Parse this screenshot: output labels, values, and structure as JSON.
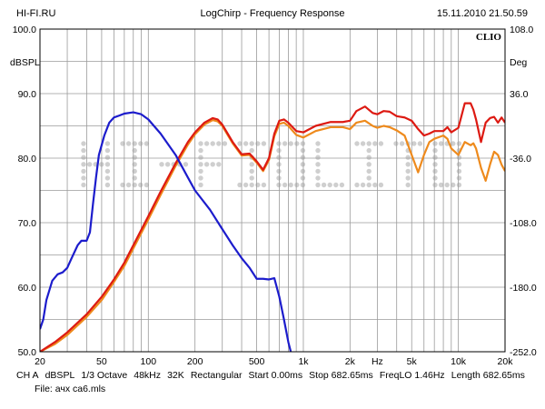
{
  "header": {
    "left": "HI-FI.RU",
    "center": "LogChirp - Frequency Response",
    "right": "15.11.2010 21.50.59"
  },
  "brand_label": "CLIO",
  "left_unit": "dBSPL",
  "right_unit": "Deg",
  "watermark_text": "HI-FI",
  "footer": {
    "items": [
      "CH A",
      "dBSPL",
      "1/3 Octave",
      "48kHz",
      "32K",
      "Rectangular",
      "Start 0.00ms",
      "Stop 682.65ms",
      "FreqLO 1.46Hz",
      "Length 682.65ms"
    ],
    "file": "File: ачх са6.mls"
  },
  "colors": {
    "blue": "#1c1ccc",
    "red": "#dd1a12",
    "orange": "#ee8a1c",
    "grid": "#9a9a9a",
    "frame": "#000000"
  },
  "chart_data": {
    "type": "line",
    "x_scale": "log",
    "xlim": [
      20,
      20000
    ],
    "ylim": [
      50,
      100
    ],
    "y2lim": [
      -252,
      108
    ],
    "xticks": [
      {
        "v": 20,
        "label": "20"
      },
      {
        "v": 50,
        "label": "50"
      },
      {
        "v": 100,
        "label": "100"
      },
      {
        "v": 200,
        "label": "200"
      },
      {
        "v": 500,
        "label": "500"
      },
      {
        "v": 1000,
        "label": "1k"
      },
      {
        "v": 2000,
        "label": "2k"
      },
      {
        "v": 3000,
        "label": "Hz"
      },
      {
        "v": 5000,
        "label": "5k"
      },
      {
        "v": 10000,
        "label": "10k"
      },
      {
        "v": 20000,
        "label": "20k"
      }
    ],
    "yticks": [
      {
        "v": 100,
        "label": "100.0"
      },
      {
        "v": 90,
        "label": "90.0"
      },
      {
        "v": 80,
        "label": "80.0"
      },
      {
        "v": 70,
        "label": "70.0"
      },
      {
        "v": 60,
        "label": "60.0"
      },
      {
        "v": 50,
        "label": "50.0"
      }
    ],
    "y2ticks": [
      {
        "v": 108,
        "label": "108.0"
      },
      {
        "v": 36,
        "label": "36.0"
      },
      {
        "v": -36,
        "label": "-36.0"
      },
      {
        "v": -108,
        "label": "-108.0"
      },
      {
        "v": -180,
        "label": "-180.0"
      },
      {
        "v": -252,
        "label": "-252.0"
      }
    ],
    "grid": true,
    "series": [
      {
        "color": "#1c1ccc",
        "x": [
          20,
          21,
          22,
          24,
          26,
          28,
          30,
          32,
          35,
          37,
          40,
          42,
          44,
          46,
          48,
          52,
          56,
          60,
          65,
          70,
          80,
          90,
          100,
          120,
          150,
          180,
          200,
          250,
          300,
          350,
          400,
          450,
          500,
          550,
          600,
          650,
          700,
          750,
          800,
          830
        ],
        "y": [
          53.5,
          55,
          58,
          61,
          62,
          62.3,
          63,
          64.5,
          66.5,
          67.2,
          67.2,
          68.5,
          73,
          77,
          80.5,
          83.5,
          85.5,
          86.3,
          86.6,
          86.9,
          87.1,
          86.8,
          86,
          83.8,
          80.5,
          77,
          75,
          72,
          69,
          66.5,
          64.5,
          63,
          61.3,
          61.3,
          61.2,
          61.4,
          58.5,
          55,
          51.5,
          50
        ]
      },
      {
        "color": "#dd1a12",
        "x": [
          20,
          25,
          30,
          40,
          50,
          60,
          70,
          80,
          100,
          120,
          150,
          180,
          200,
          230,
          260,
          280,
          300,
          350,
          400,
          450,
          500,
          550,
          600,
          650,
          700,
          750,
          800,
          900,
          1000,
          1200,
          1500,
          1800,
          2000,
          2200,
          2500,
          2800,
          3000,
          3300,
          3600,
          4000,
          4500,
          5000,
          5500,
          6000,
          6500,
          7000,
          8000,
          8500,
          9000,
          10000,
          11000,
          12000,
          12500,
          13000,
          14000,
          15000,
          16000,
          17000,
          18000,
          19000,
          20000
        ],
        "y": [
          50,
          51.5,
          53,
          55.8,
          58.5,
          61.2,
          63.8,
          66.5,
          71,
          74.8,
          79.2,
          82.5,
          84,
          85.5,
          86.2,
          86,
          85.2,
          82.5,
          80.6,
          80.7,
          79.5,
          78.2,
          80,
          83.8,
          85.8,
          86,
          85.5,
          84.2,
          84,
          85,
          85.6,
          85.6,
          85.8,
          87.3,
          88,
          87,
          86.8,
          87.3,
          87.2,
          86.5,
          86.3,
          85.8,
          84.5,
          83.5,
          83.8,
          84.2,
          84.2,
          84.8,
          84,
          84.7,
          88.5,
          88.5,
          87.5,
          86,
          82.5,
          85.5,
          86.2,
          86.4,
          85.5,
          86.3,
          85.5
        ]
      },
      {
        "color": "#ee8a1c",
        "x": [
          20,
          25,
          30,
          40,
          50,
          60,
          70,
          80,
          100,
          120,
          150,
          180,
          200,
          230,
          260,
          280,
          300,
          350,
          400,
          450,
          500,
          550,
          600,
          650,
          700,
          750,
          800,
          900,
          1000,
          1200,
          1500,
          1800,
          2000,
          2200,
          2500,
          2800,
          3000,
          3300,
          3600,
          4000,
          4500,
          5000,
          5500,
          6000,
          6500,
          7000,
          8000,
          8500,
          9000,
          10000,
          11000,
          12000,
          12500,
          13000,
          14000,
          15000,
          16000,
          17000,
          18000,
          19000,
          20000
        ],
        "y": [
          50,
          51.2,
          52.6,
          55.4,
          58,
          60.8,
          63.3,
          66,
          70.5,
          74.3,
          78.8,
          82.1,
          83.7,
          85.2,
          85.9,
          85.7,
          85,
          82.3,
          80.4,
          80.5,
          79.3,
          78,
          79.7,
          83.4,
          85.3,
          85.5,
          85,
          83.6,
          83.2,
          84.2,
          84.8,
          84.8,
          84.5,
          85.5,
          85.8,
          85,
          84.7,
          85,
          84.8,
          84.3,
          83.5,
          80.5,
          77.8,
          80.5,
          82.5,
          83,
          83.5,
          83,
          81.5,
          80.5,
          82.5,
          82,
          82.3,
          81.5,
          78.5,
          76.5,
          79,
          81,
          80.5,
          79,
          78
        ]
      }
    ]
  }
}
